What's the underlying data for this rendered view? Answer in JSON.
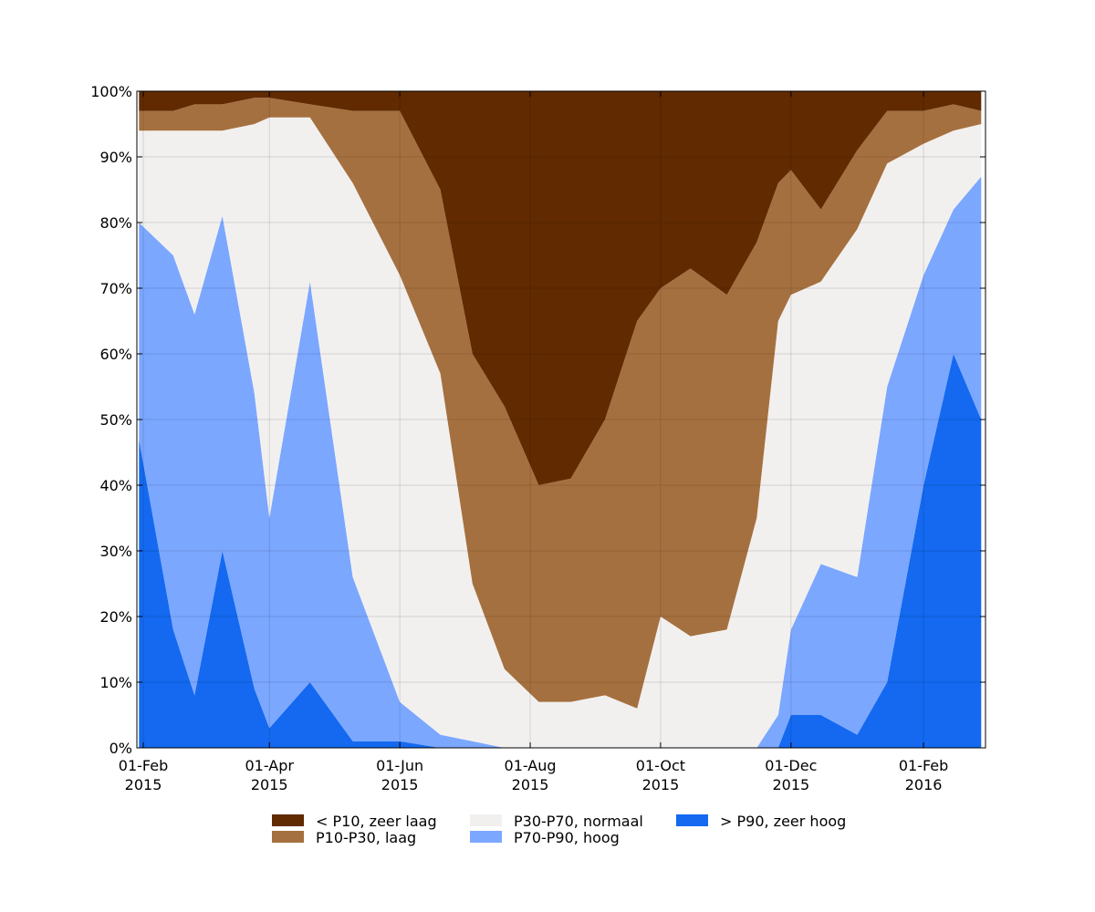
{
  "chart_data": {
    "type": "area",
    "stacked": true,
    "normalized": true,
    "x": [
      "2015-01-30",
      "2015-02-15",
      "2015-02-25",
      "2015-03-10",
      "2015-03-25",
      "2015-04-01",
      "2015-04-20",
      "2015-05-10",
      "2015-06-01",
      "2015-06-20",
      "2015-07-05",
      "2015-07-20",
      "2015-08-05",
      "2015-08-20",
      "2015-09-05",
      "2015-09-20",
      "2015-10-01",
      "2015-10-15",
      "2015-11-01",
      "2015-11-15",
      "2015-11-25",
      "2015-12-01",
      "2015-12-15",
      "2016-01-01",
      "2016-01-15",
      "2016-02-01",
      "2016-02-15",
      "2016-02-28"
    ],
    "series": [
      {
        "name": "> P90, zeer hoog",
        "color": "#1469F0",
        "values": [
          47,
          18,
          8,
          30,
          9,
          3,
          10,
          1,
          1,
          0,
          0,
          0,
          0,
          0,
          0,
          0,
          0,
          0,
          0,
          0,
          0,
          5,
          5,
          2,
          10,
          40,
          60,
          50
        ]
      },
      {
        "name": "P70-P90, hoog",
        "color": "#7BA7FF",
        "values": [
          33,
          57,
          58,
          51,
          45,
          32,
          61,
          25,
          6,
          2,
          1,
          0,
          0,
          0,
          0,
          0,
          0,
          0,
          0,
          0,
          5,
          13,
          23,
          24,
          45,
          32,
          22,
          37
        ]
      },
      {
        "name": "P30-P70, normaal",
        "color": "#F2F0EF",
        "values": [
          14,
          19,
          28,
          13,
          41,
          61,
          25,
          60,
          65,
          55,
          24,
          12,
          7,
          7,
          8,
          6,
          20,
          17,
          18,
          35,
          60,
          51,
          43,
          53,
          34,
          20,
          12,
          8
        ]
      },
      {
        "name": "P10-P30, laag",
        "color": "#A5703F",
        "values": [
          3,
          3,
          4,
          4,
          4,
          3,
          2,
          11,
          25,
          28,
          35,
          40,
          33,
          34,
          42,
          59,
          50,
          56,
          51,
          42,
          21,
          19,
          11,
          12,
          8,
          5,
          4,
          2
        ]
      },
      {
        "name": "< P10, zeer laag",
        "color": "#612A00",
        "values": [
          3,
          3,
          2,
          2,
          1,
          1,
          2,
          3,
          3,
          15,
          40,
          48,
          60,
          59,
          50,
          35,
          30,
          27,
          31,
          23,
          14,
          12,
          18,
          9,
          3,
          3,
          2,
          3
        ]
      }
    ],
    "x_ticks": [
      {
        "date": "2015-02-01",
        "line1": "01-Feb",
        "line2": "2015"
      },
      {
        "date": "2015-04-01",
        "line1": "01-Apr",
        "line2": "2015"
      },
      {
        "date": "2015-06-01",
        "line1": "01-Jun",
        "line2": "2015"
      },
      {
        "date": "2015-08-01",
        "line1": "01-Aug",
        "line2": "2015"
      },
      {
        "date": "2015-10-01",
        "line1": "01-Oct",
        "line2": "2015"
      },
      {
        "date": "2015-12-01",
        "line1": "01-Dec",
        "line2": "2015"
      },
      {
        "date": "2016-02-01",
        "line1": "01-Feb",
        "line2": "2016"
      }
    ],
    "y_ticks": [
      "0%",
      "10%",
      "20%",
      "30%",
      "40%",
      "50%",
      "60%",
      "70%",
      "80%",
      "90%",
      "100%"
    ],
    "xlim": [
      "2015-01-29",
      "2016-03-01"
    ],
    "ylim": [
      0,
      100
    ],
    "grid": true,
    "legend_placement": "bottom-center",
    "legend_order": [
      4,
      3,
      2,
      1,
      0
    ],
    "title": "",
    "xlabel": "",
    "ylabel": ""
  }
}
